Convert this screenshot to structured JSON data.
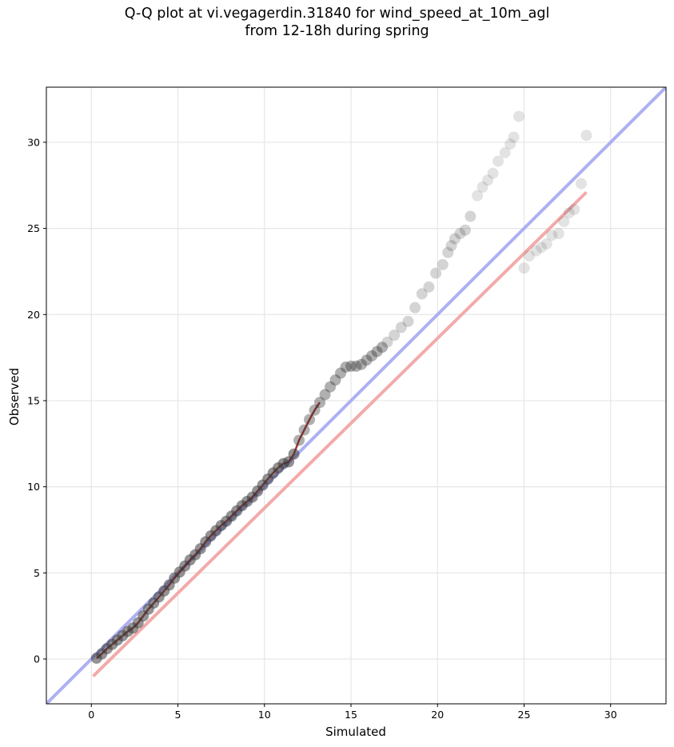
{
  "chart_data": {
    "type": "scatter",
    "title_lines": [
      "Q-Q plot at vi.vegagerdin.31840 for wind_speed_at_10m_agl",
      "from 12-18h during spring"
    ],
    "xlabel": "Simulated",
    "ylabel": "Observed",
    "xlim": [
      -2.6,
      33.2
    ],
    "ylim": [
      -2.6,
      33.2
    ],
    "xticks": [
      0,
      5,
      10,
      15,
      20,
      25,
      30
    ],
    "yticks": [
      0,
      5,
      10,
      15,
      20,
      25,
      30
    ],
    "grid": true,
    "colors": {
      "points": "#3a3a3a",
      "identity_line": "#a9acf2",
      "fit_line": "#f3a6a6",
      "trace": "#8b0000",
      "grid": "#e6e6e6"
    },
    "reference_lines": [
      {
        "kind": "identity",
        "x": [
          -2.6,
          33.2
        ],
        "y": [
          -2.6,
          33.2
        ]
      },
      {
        "kind": "fit",
        "x": [
          0.1,
          28.6
        ],
        "y": [
          -1.0,
          27.1
        ]
      }
    ],
    "points": {
      "x": [
        0.3,
        0.6,
        0.9,
        1.2,
        1.5,
        1.8,
        2.1,
        2.4,
        2.7,
        3.0,
        3.3,
        3.6,
        3.9,
        4.2,
        4.5,
        4.8,
        5.1,
        5.4,
        5.7,
        6.0,
        6.3,
        6.6,
        6.9,
        7.2,
        7.5,
        7.8,
        8.1,
        8.4,
        8.7,
        9.0,
        9.3,
        9.6,
        9.9,
        10.2,
        10.5,
        10.8,
        11.1,
        11.4,
        11.7,
        12.0,
        12.3,
        12.6,
        12.9,
        13.2,
        13.5,
        13.8,
        14.1,
        14.4,
        14.7,
        15.0,
        15.3,
        15.6,
        15.9,
        16.2,
        16.5,
        16.8,
        17.1,
        17.5,
        17.9,
        18.3,
        18.7,
        19.1,
        19.5,
        19.9,
        20.3,
        20.6,
        20.8,
        21.0,
        21.3,
        21.6,
        21.9,
        22.3,
        22.6,
        22.9,
        23.2,
        23.5,
        23.9,
        24.2,
        24.4,
        24.7,
        25.0,
        25.3,
        25.7,
        26.0,
        26.3,
        26.6,
        27.0,
        27.3,
        27.6,
        27.9,
        28.3,
        28.6
      ],
      "y": [
        0.05,
        0.3,
        0.6,
        0.85,
        1.1,
        1.35,
        1.6,
        1.8,
        2.1,
        2.5,
        2.9,
        3.25,
        3.6,
        3.95,
        4.3,
        4.7,
        5.05,
        5.4,
        5.75,
        6.05,
        6.4,
        6.8,
        7.15,
        7.45,
        7.75,
        8.0,
        8.3,
        8.6,
        8.9,
        9.15,
        9.4,
        9.75,
        10.1,
        10.45,
        10.8,
        11.1,
        11.35,
        11.45,
        11.9,
        12.7,
        13.3,
        13.9,
        14.45,
        14.9,
        15.35,
        15.8,
        16.2,
        16.6,
        16.95,
        17.0,
        17.0,
        17.1,
        17.35,
        17.6,
        17.85,
        18.1,
        18.4,
        18.8,
        19.25,
        19.6,
        20.4,
        21.2,
        21.6,
        22.4,
        22.9,
        23.6,
        24.0,
        24.4,
        24.7,
        24.9,
        25.7,
        26.9,
        27.4,
        27.8,
        28.2,
        28.9,
        29.4,
        29.9,
        30.3,
        31.5,
        22.7,
        23.4,
        23.7,
        23.9,
        24.1,
        24.6,
        24.7,
        25.4,
        25.9,
        26.1,
        27.6,
        30.4
      ]
    }
  }
}
